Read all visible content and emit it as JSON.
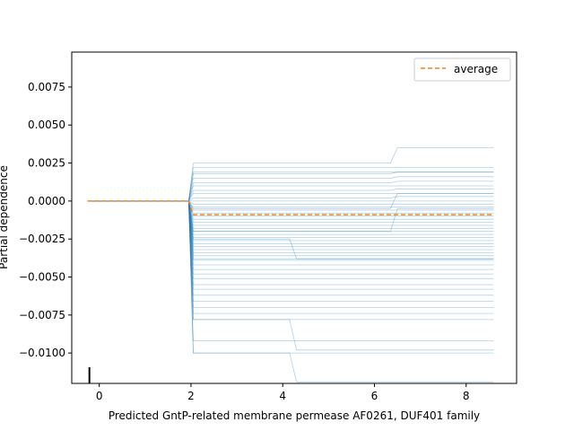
{
  "chart_data": {
    "type": "line",
    "title": "",
    "xlabel": "Predicted GntP-related membrane permease AF0261, DUF401 family",
    "ylabel": "Partial dependence",
    "xlim": [
      -0.6,
      9.1
    ],
    "ylim": [
      -0.012,
      0.0098
    ],
    "xticks": [
      0,
      2,
      4,
      6,
      8
    ],
    "yticks": [
      -0.01,
      -0.0075,
      -0.005,
      -0.0025,
      0.0,
      0.0025,
      0.005,
      0.0075
    ],
    "ytick_labels": [
      "−0.0100",
      "−0.0075",
      "−0.0050",
      "−0.0025",
      "0.0000",
      "0.0025",
      "0.0050",
      "0.0075"
    ],
    "grid": false,
    "legend": {
      "position": "top-right",
      "entries": [
        {
          "label": "average",
          "style": "dashed",
          "color": "#ff7f0e"
        }
      ]
    },
    "x": [
      -0.25,
      1.95,
      2.05,
      4.15,
      4.3,
      6.35,
      6.5,
      8.6
    ],
    "ice_color": "#1f77b4",
    "ice_lines": [
      [
        0,
        0,
        0.0025,
        0.0025,
        0.0025,
        0.0025,
        0.0035,
        0.0035
      ],
      [
        0,
        0,
        0.0022,
        0.0022,
        0.0022,
        0.0022,
        0.0022,
        0.0022
      ],
      [
        0,
        0,
        0.0019,
        0.0019,
        0.0019,
        0.0019,
        0.0019,
        0.0019
      ],
      [
        0,
        0,
        0.0018,
        0.0018,
        0.0018,
        0.0018,
        0.0019,
        0.0019
      ],
      [
        0,
        0,
        0.0015,
        0.0015,
        0.0015,
        0.0015,
        0.0016,
        0.0016
      ],
      [
        0,
        0,
        0.0012,
        0.0012,
        0.0012,
        0.0012,
        0.0013,
        0.0013
      ],
      [
        0,
        0,
        0.001,
        0.001,
        0.001,
        0.001,
        0.001,
        0.001
      ],
      [
        0,
        0,
        0.0007,
        0.0007,
        0.0007,
        0.0007,
        0.0008,
        0.0008
      ],
      [
        0,
        0,
        0.0005,
        0.0005,
        0.0005,
        0.0005,
        0.0005,
        0.0005
      ],
      [
        0,
        0,
        0.0002,
        0.0002,
        0.0002,
        0.0002,
        0.0003,
        0.0003
      ],
      [
        0,
        0,
        0.0,
        0.0,
        0.0,
        0.0,
        0.0,
        0.0
      ],
      [
        0,
        0,
        -0.0002,
        -0.0002,
        -0.0002,
        -0.0002,
        -0.0002,
        -0.0002
      ],
      [
        0,
        0,
        -0.0004,
        -0.0004,
        -0.0004,
        -0.0004,
        -0.0004,
        -0.0004
      ],
      [
        0,
        0,
        -0.0006,
        -0.0006,
        -0.0006,
        -0.0006,
        -0.0006,
        -0.0006
      ],
      [
        0,
        0,
        -0.0008,
        -0.0008,
        -0.0008,
        -0.0008,
        -0.0008,
        -0.0008
      ],
      [
        0,
        0,
        -0.001,
        -0.001,
        -0.001,
        -0.001,
        -0.001,
        -0.001
      ],
      [
        0,
        0,
        -0.0012,
        -0.0012,
        -0.0012,
        -0.0012,
        -0.0012,
        -0.0012
      ],
      [
        0,
        0,
        -0.0014,
        -0.0014,
        -0.0014,
        -0.0014,
        -0.0014,
        -0.0014
      ],
      [
        0,
        0,
        -0.0016,
        -0.0016,
        -0.0016,
        -0.0016,
        -0.0016,
        -0.0016
      ],
      [
        0,
        0,
        -0.0018,
        -0.0018,
        -0.0018,
        -0.0018,
        -0.0018,
        -0.0018
      ],
      [
        0,
        0,
        -0.002,
        -0.002,
        -0.002,
        -0.002,
        -0.002,
        -0.002
      ],
      [
        0,
        0,
        -0.0022,
        -0.0022,
        -0.0022,
        -0.0022,
        -0.0022,
        -0.0022
      ],
      [
        0,
        0,
        -0.0024,
        -0.0024,
        -0.0024,
        -0.0024,
        -0.0024,
        -0.0024
      ],
      [
        0,
        0,
        -0.0026,
        -0.0026,
        -0.0026,
        -0.0026,
        -0.0026,
        -0.0026
      ],
      [
        0,
        0,
        -0.0028,
        -0.0028,
        -0.0028,
        -0.0028,
        -0.0028,
        -0.0028
      ],
      [
        0,
        0,
        -0.003,
        -0.003,
        -0.003,
        -0.003,
        -0.003,
        -0.003
      ],
      [
        0,
        0,
        -0.0032,
        -0.0032,
        -0.0032,
        -0.0032,
        -0.0032,
        -0.0032
      ],
      [
        0,
        0,
        -0.0034,
        -0.0034,
        -0.0034,
        -0.0034,
        -0.0034,
        -0.0034
      ],
      [
        0,
        0,
        -0.0036,
        -0.0036,
        -0.0036,
        -0.0036,
        -0.0036,
        -0.0036
      ],
      [
        0,
        0,
        -0.0038,
        -0.0038,
        -0.0038,
        -0.0038,
        -0.0038,
        -0.0038
      ],
      [
        0,
        0,
        -0.0039,
        -0.0039,
        -0.0039,
        -0.0039,
        -0.0039,
        -0.0039
      ],
      [
        0,
        0,
        -0.0042,
        -0.0042,
        -0.0042,
        -0.0042,
        -0.0042,
        -0.0042
      ],
      [
        0,
        0,
        -0.0045,
        -0.0045,
        -0.0045,
        -0.0045,
        -0.0045,
        -0.0045
      ],
      [
        0,
        0,
        -0.0048,
        -0.0048,
        -0.0048,
        -0.0048,
        -0.0048,
        -0.0048
      ],
      [
        0,
        0,
        -0.0051,
        -0.0051,
        -0.0051,
        -0.0051,
        -0.0051,
        -0.0051
      ],
      [
        0,
        0,
        -0.0055,
        -0.0055,
        -0.0055,
        -0.0055,
        -0.0055,
        -0.0055
      ],
      [
        0,
        0,
        -0.0058,
        -0.0058,
        -0.0058,
        -0.0058,
        -0.0058,
        -0.0058
      ],
      [
        0,
        0,
        -0.0062,
        -0.0062,
        -0.0062,
        -0.0062,
        -0.0062,
        -0.0062
      ],
      [
        0,
        0,
        -0.0066,
        -0.0066,
        -0.0066,
        -0.0066,
        -0.0066,
        -0.0066
      ],
      [
        0,
        0,
        -0.007,
        -0.007,
        -0.007,
        -0.007,
        -0.007,
        -0.007
      ],
      [
        0,
        0,
        -0.0074,
        -0.0074,
        -0.0074,
        -0.0074,
        -0.0074,
        -0.0074
      ],
      [
        0,
        0,
        -0.0078,
        -0.0078,
        -0.0078,
        -0.0078,
        -0.0078,
        -0.0078
      ],
      [
        0,
        0,
        -0.0092,
        -0.0092,
        -0.0092,
        -0.0092,
        -0.0092,
        -0.0092
      ],
      [
        0,
        0,
        -0.01,
        -0.01,
        -0.01,
        -0.01,
        -0.01,
        -0.01
      ],
      [
        0,
        0,
        -0.0025,
        -0.0025,
        -0.0038,
        -0.0038,
        -0.0038,
        -0.0038
      ],
      [
        0,
        0,
        -0.0078,
        -0.0078,
        -0.0098,
        -0.0098,
        -0.0098,
        -0.0098
      ],
      [
        0,
        0,
        -0.01,
        -0.01,
        -0.0119,
        -0.0119,
        -0.0119,
        -0.0119
      ],
      [
        0,
        0,
        -0.002,
        -0.002,
        -0.002,
        -0.002,
        -0.0005,
        -0.0005
      ],
      [
        0,
        0,
        -0.0005,
        -0.0005,
        -0.0005,
        -0.0005,
        0.0005,
        0.0005
      ]
    ],
    "average": [
      0,
      0,
      -0.0009,
      -0.0009,
      -0.0009,
      -0.0009,
      -0.0009,
      -0.0009
    ],
    "rug_x": [
      0
    ]
  }
}
